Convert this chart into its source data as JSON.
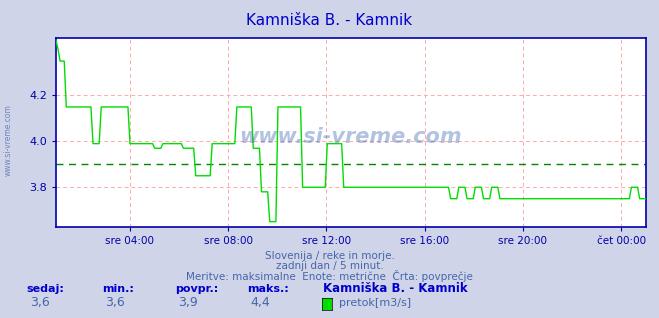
{
  "title": "Kamniška B. - Kamnik",
  "title_color": "#0000cc",
  "bg_color": "#d0d4e8",
  "plot_bg_color": "#ffffff",
  "line_color": "#00dd00",
  "avg_line_color": "#008800",
  "avg_line_value": 3.9,
  "border_color": "#0000aa",
  "grid_color": "#ffaaaa",
  "ylim": [
    3.625,
    4.45
  ],
  "yticks": [
    3.8,
    4.0,
    4.2
  ],
  "tick_label_color": "#4466aa",
  "xtick_labels": [
    "sre 04:00",
    "sre 08:00",
    "sre 12:00",
    "sre 16:00",
    "sre 20:00",
    "čet 00:00"
  ],
  "subtitle1": "Slovenija / reke in morje.",
  "subtitle2": "zadnji dan / 5 minut.",
  "subtitle3": "Meritve: maksimalne  Enote: metrične  Črta: povprečje",
  "legend_station": "Kamniška B. - Kamnik",
  "legend_label": "pretok[m3/s]",
  "stat_labels": [
    "sedaj:",
    "min.:",
    "povpr.:",
    "maks.:"
  ],
  "stat_values": [
    "3,6",
    "3,6",
    "3,9",
    "4,4"
  ],
  "watermark": "www.si-vreme.com",
  "n_points": 288,
  "left_label": "www.si-vreme.com"
}
